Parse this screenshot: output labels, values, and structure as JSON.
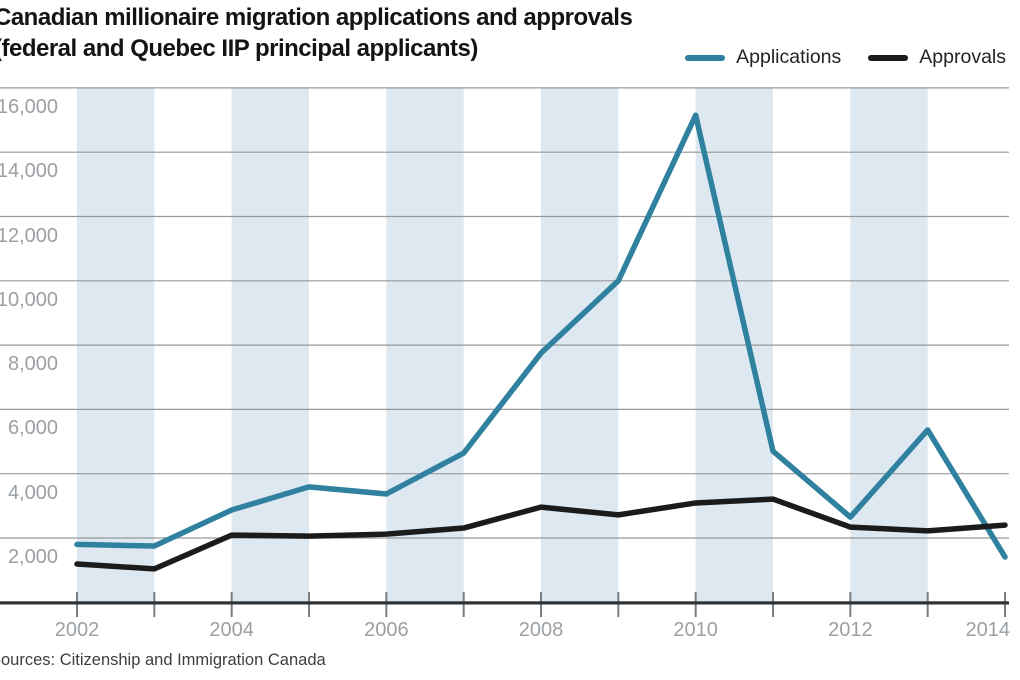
{
  "title": {
    "line1": "Canadian millionaire migration applications and approvals",
    "line2": "(federal and Quebec IIP principal applicants)"
  },
  "legend": [
    {
      "label": "Applications",
      "color": "#30809f"
    },
    {
      "label": "Approvals",
      "color": "#1b1b1b"
    }
  ],
  "source": "Sources: Citizenship and Immigration Canada",
  "chart_data": {
    "type": "line",
    "x": [
      2002,
      2003,
      2004,
      2005,
      2006,
      2007,
      2008,
      2009,
      2010,
      2011,
      2012,
      2013,
      2014
    ],
    "series": [
      {
        "name": "Applications",
        "color": "#30809f",
        "values": [
          1800,
          1750,
          2870,
          3590,
          3370,
          4640,
          7750,
          10000,
          15150,
          4700,
          2650,
          5360,
          1410
        ]
      },
      {
        "name": "Approvals",
        "color": "#1b1b1b",
        "values": [
          1190,
          1040,
          2090,
          2060,
          2120,
          2310,
          2960,
          2720,
          3090,
          3210,
          2340,
          2220,
          2400
        ]
      }
    ],
    "xlim": [
      2002,
      2014
    ],
    "ylim": [
      0,
      16000
    ],
    "y_ticks": [
      {
        "value": 2000,
        "label": "2,000"
      },
      {
        "value": 4000,
        "label": "4,000"
      },
      {
        "value": 6000,
        "label": "6,000"
      },
      {
        "value": 8000,
        "label": "8,000"
      },
      {
        "value": 10000,
        "label": "10,000"
      },
      {
        "value": 12000,
        "label": "12,000"
      },
      {
        "value": 14000,
        "label": "14,000"
      },
      {
        "value": 16000,
        "label": "16,000"
      }
    ],
    "x_labeled_years": [
      2002,
      2004,
      2006,
      2008,
      2010,
      2012,
      2014
    ],
    "bands": [
      [
        2002,
        2003
      ],
      [
        2004,
        2005
      ],
      [
        2006,
        2007
      ],
      [
        2008,
        2009
      ],
      [
        2010,
        2011
      ],
      [
        2012,
        2013
      ]
    ],
    "grid": true,
    "legend_position": "top-right",
    "band_color": "#dde8f1",
    "grid_color": "#97999b",
    "axis_color": "#2f3235",
    "tick_color": "#7a7e81",
    "tick_label_color": "#9ba0a4"
  }
}
